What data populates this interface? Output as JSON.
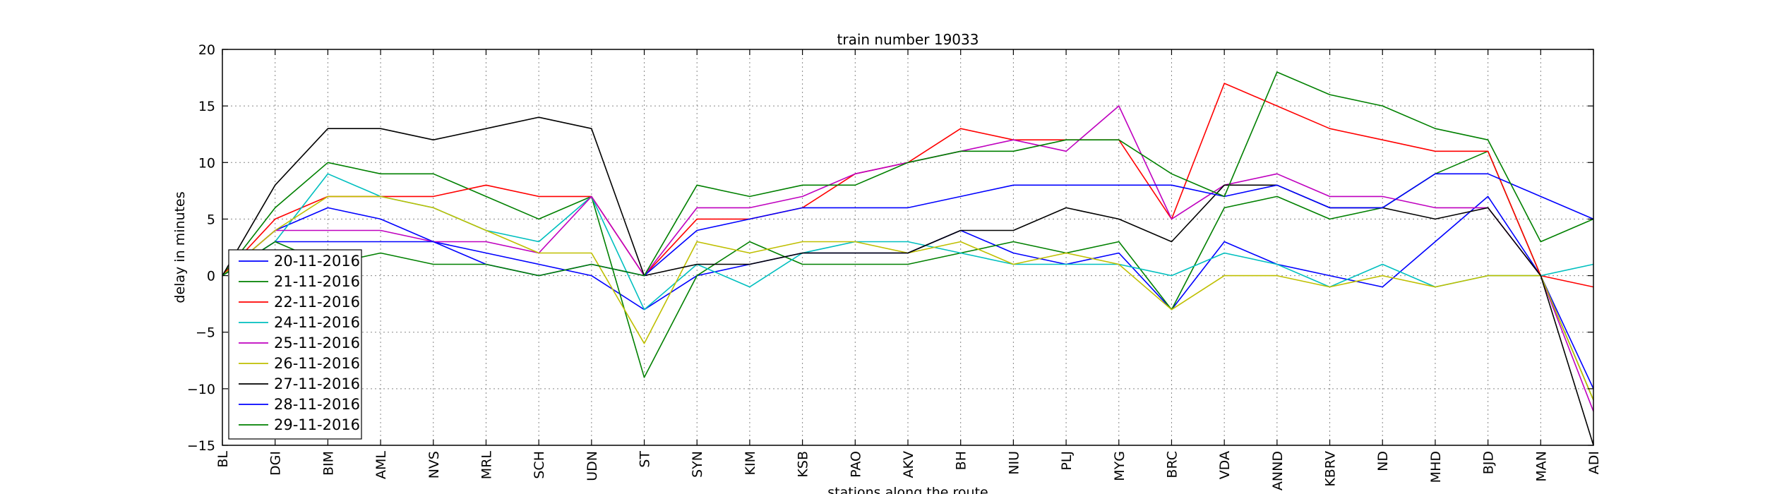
{
  "chart_data": {
    "type": "line",
    "title": "train number 19033",
    "xlabel": "stations along the route",
    "ylabel": "delay in minutes",
    "ylim": [
      -15,
      20
    ],
    "yticks": [
      -15,
      -10,
      -5,
      0,
      5,
      10,
      15,
      20
    ],
    "grid": true,
    "legend_position": "lower-left",
    "categories": [
      "BL",
      "DGI",
      "BIM",
      "AML",
      "NVS",
      "MRL",
      "SCH",
      "UDN",
      "ST",
      "SYN",
      "KIM",
      "KSB",
      "PAO",
      "AKV",
      "BH",
      "NIU",
      "PLJ",
      "MYG",
      "BRC",
      "VDA",
      "ANND",
      "KBRV",
      "ND",
      "MHD",
      "BJD",
      "MAN",
      "ADI"
    ],
    "series": [
      {
        "name": "20-11-2016",
        "color": "#0000ff",
        "values": [
          0,
          4,
          6,
          5,
          3,
          2,
          1,
          0,
          -3,
          0,
          1,
          2,
          2,
          2,
          4,
          2,
          1,
          2,
          -3,
          3,
          1,
          0,
          -1,
          3,
          7,
          0,
          -10
        ]
      },
      {
        "name": "21-11-2016",
        "color": "#008000",
        "values": [
          0,
          6,
          10,
          9,
          9,
          7,
          5,
          7,
          -9,
          0,
          3,
          1,
          1,
          1,
          2,
          3,
          2,
          3,
          -3,
          6,
          7,
          5,
          6,
          9,
          11,
          0,
          -11
        ]
      },
      {
        "name": "22-11-2016",
        "color": "#ff0000",
        "values": [
          0,
          5,
          7,
          7,
          7,
          8,
          7,
          7,
          0,
          5,
          5,
          6,
          9,
          10,
          13,
          12,
          12,
          12,
          5,
          17,
          15,
          13,
          12,
          11,
          11,
          0,
          -1
        ]
      },
      {
        "name": "24-11-2016",
        "color": "#00bfbf",
        "values": [
          0,
          3,
          9,
          7,
          6,
          4,
          3,
          7,
          -3,
          1,
          -1,
          2,
          3,
          3,
          2,
          1,
          1,
          1,
          0,
          2,
          1,
          -1,
          1,
          -1,
          0,
          0,
          1
        ]
      },
      {
        "name": "25-11-2016",
        "color": "#bf00bf",
        "values": [
          0,
          4,
          4,
          4,
          3,
          3,
          2,
          7,
          0,
          6,
          6,
          7,
          9,
          10,
          11,
          12,
          11,
          15,
          5,
          8,
          9,
          7,
          7,
          6,
          6,
          0,
          -12
        ]
      },
      {
        "name": "26-11-2016",
        "color": "#bfbf00",
        "values": [
          0,
          4,
          7,
          7,
          6,
          4,
          2,
          2,
          -6,
          3,
          2,
          3,
          3,
          2,
          3,
          1,
          2,
          1,
          -3,
          0,
          0,
          -1,
          0,
          -1,
          0,
          0,
          -11
        ]
      },
      {
        "name": "27-11-2016",
        "color": "#000000",
        "values": [
          0,
          8,
          13,
          13,
          12,
          13,
          14,
          13,
          0,
          1,
          1,
          2,
          2,
          2,
          4,
          4,
          6,
          5,
          3,
          8,
          8,
          6,
          6,
          5,
          6,
          0,
          -15
        ]
      },
      {
        "name": "28-11-2016",
        "color": "#0000ff",
        "values": [
          0,
          3,
          3,
          3,
          3,
          1,
          0,
          1,
          0,
          4,
          5,
          6,
          6,
          6,
          7,
          8,
          8,
          8,
          8,
          7,
          8,
          6,
          6,
          9,
          9,
          7,
          5
        ]
      },
      {
        "name": "29-11-2016",
        "color": "#008000",
        "values": [
          0,
          3,
          1,
          2,
          1,
          1,
          0,
          1,
          0,
          8,
          7,
          8,
          8,
          10,
          11,
          11,
          12,
          12,
          9,
          7,
          18,
          16,
          15,
          13,
          12,
          3,
          5
        ]
      }
    ]
  }
}
